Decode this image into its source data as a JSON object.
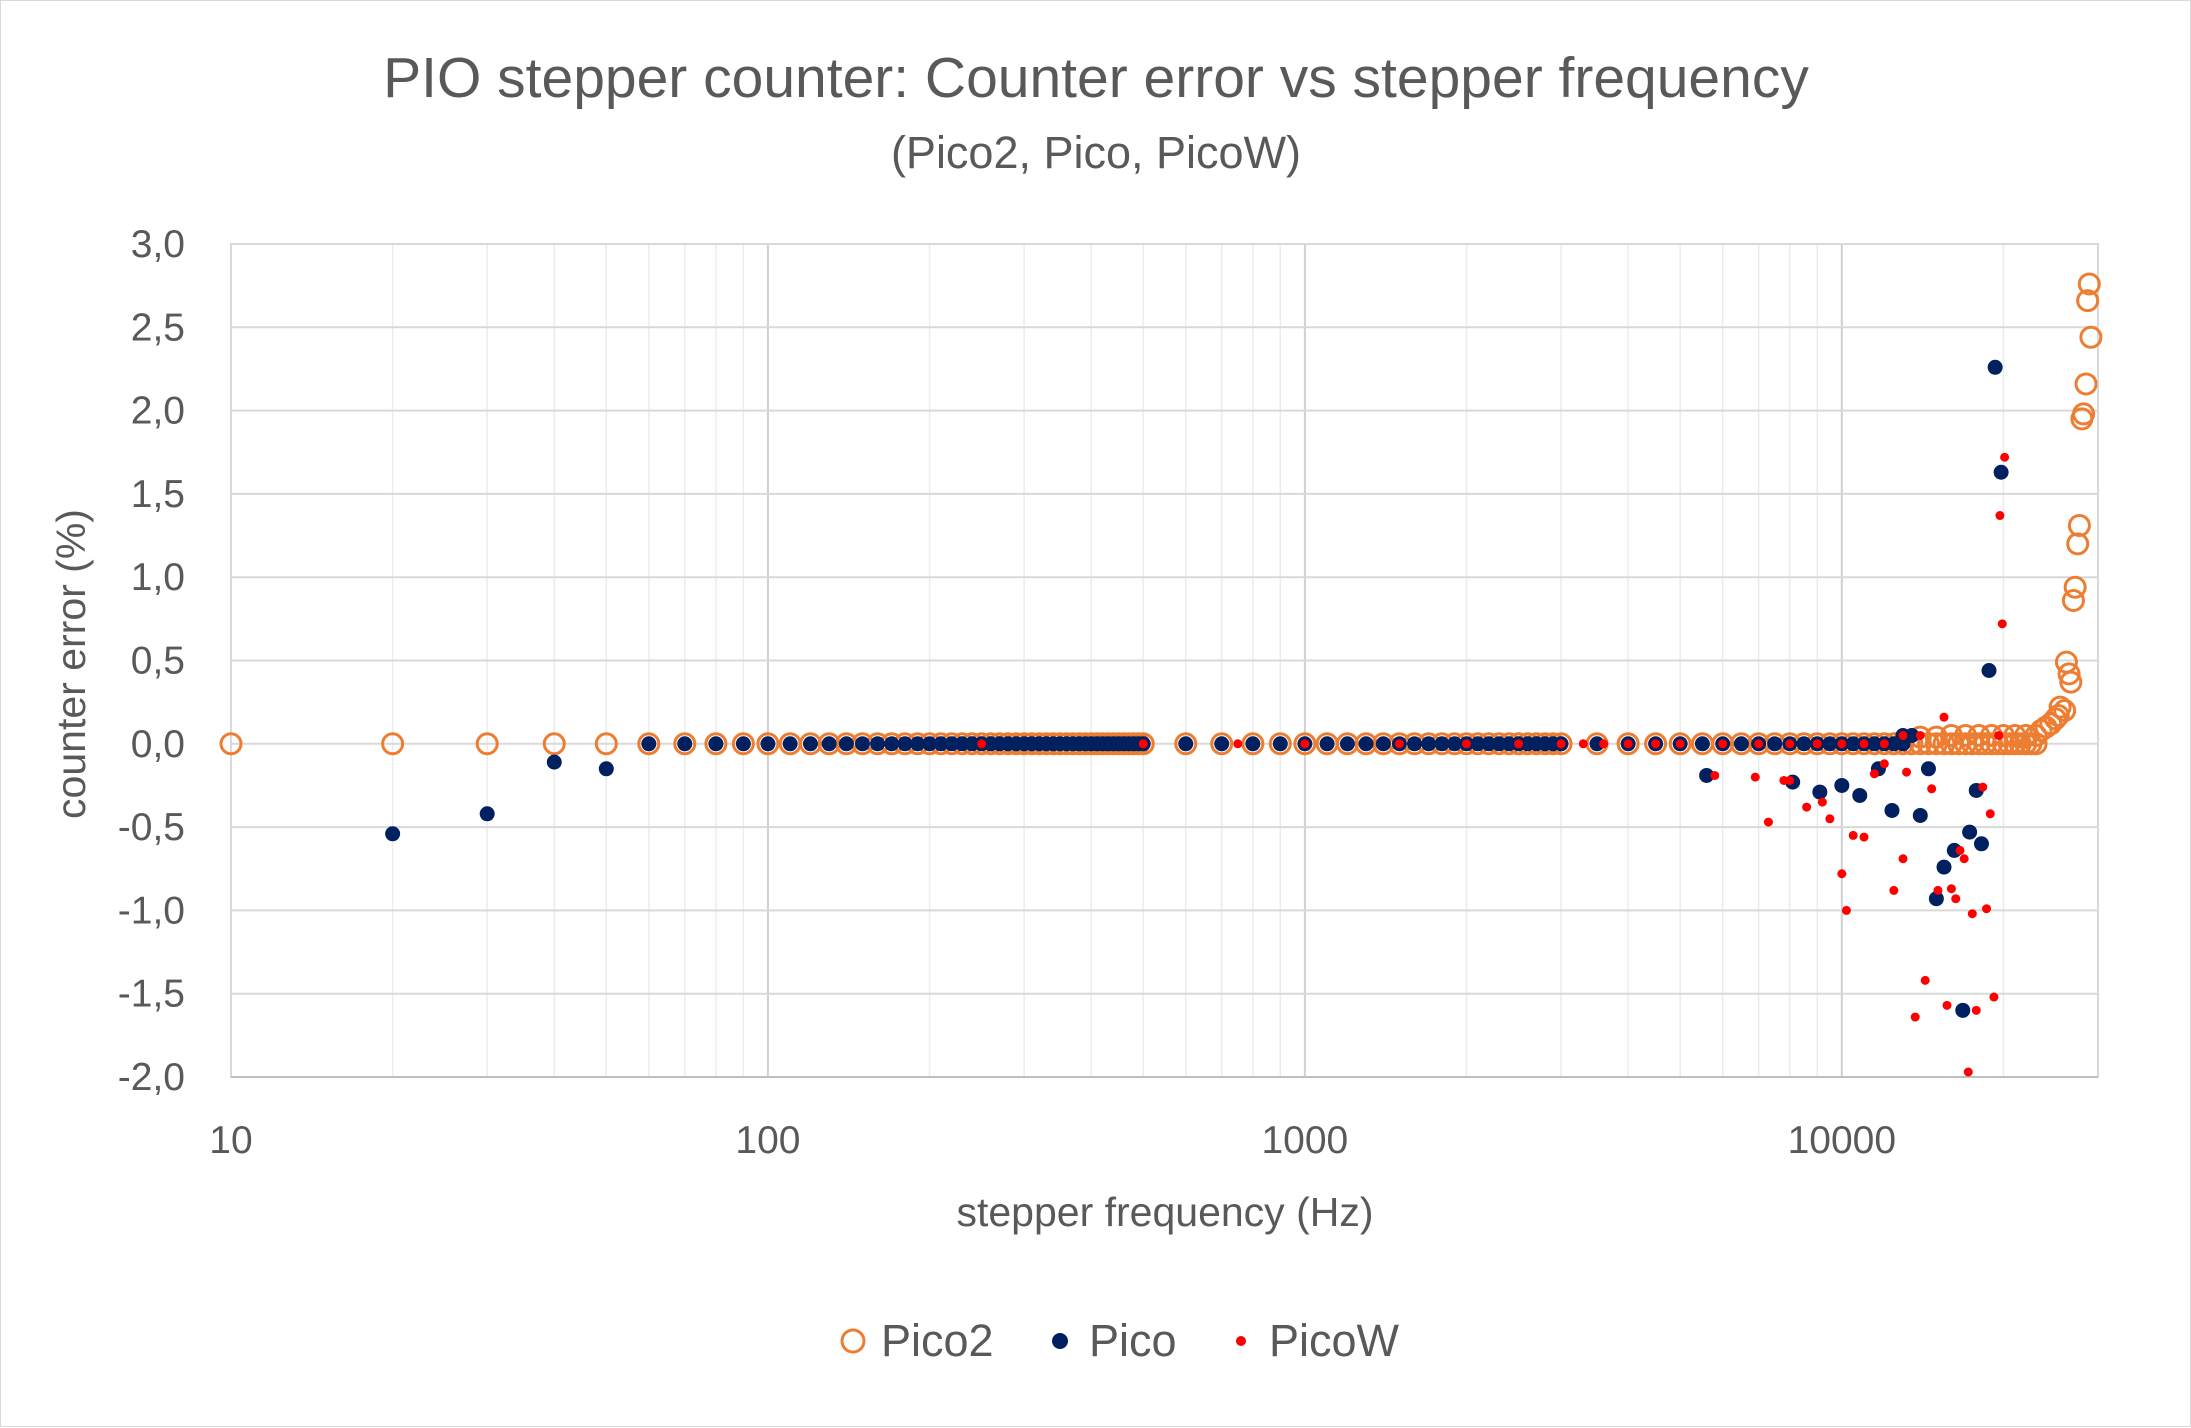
{
  "chart_data": {
    "type": "scatter",
    "title": "PIO stepper counter: Counter error vs stepper frequency",
    "subtitle": "(Pico2, Pico, PicoW)",
    "xlabel": "stepper frequency (Hz)",
    "ylabel": "counter error (%)",
    "xscale": "log",
    "xlim": [
      10,
      30000
    ],
    "ylim": [
      -2.0,
      3.0
    ],
    "x_ticks": [
      10,
      100,
      1000,
      10000
    ],
    "x_tick_labels": [
      "10",
      "100",
      "1000",
      "10000"
    ],
    "y_ticks": [
      3.0,
      2.5,
      2.0,
      1.5,
      1.0,
      0.5,
      0.0,
      -0.5,
      -1.0,
      -1.5,
      -2.0
    ],
    "y_tick_labels": [
      "3,0",
      "2,5",
      "2,0",
      "1,5",
      "1,0",
      "0,5",
      "0,0",
      "-0,5",
      "-1,0",
      "-1,5",
      "-2,0"
    ],
    "grid": true,
    "legend_position": "bottom",
    "series": [
      {
        "name": "Pico2",
        "color": "#ED7D31",
        "marker": "open-circle",
        "points": [
          [
            10,
            0
          ],
          [
            20,
            0
          ],
          [
            30,
            0
          ],
          [
            40,
            0
          ],
          [
            50,
            0
          ],
          [
            60,
            0
          ],
          [
            70,
            0
          ],
          [
            80,
            0
          ],
          [
            90,
            0
          ],
          [
            100,
            0
          ],
          [
            110,
            0
          ],
          [
            120,
            0
          ],
          [
            130,
            0
          ],
          [
            140,
            0
          ],
          [
            150,
            0
          ],
          [
            160,
            0
          ],
          [
            170,
            0
          ],
          [
            180,
            0
          ],
          [
            190,
            0
          ],
          [
            200,
            0
          ],
          [
            210,
            0
          ],
          [
            220,
            0
          ],
          [
            230,
            0
          ],
          [
            240,
            0
          ],
          [
            250,
            0
          ],
          [
            260,
            0
          ],
          [
            270,
            0
          ],
          [
            280,
            0
          ],
          [
            290,
            0
          ],
          [
            300,
            0
          ],
          [
            310,
            0
          ],
          [
            320,
            0
          ],
          [
            330,
            0
          ],
          [
            340,
            0
          ],
          [
            350,
            0
          ],
          [
            360,
            0
          ],
          [
            370,
            0
          ],
          [
            380,
            0
          ],
          [
            390,
            0
          ],
          [
            400,
            0
          ],
          [
            410,
            0
          ],
          [
            420,
            0
          ],
          [
            430,
            0
          ],
          [
            440,
            0
          ],
          [
            450,
            0
          ],
          [
            460,
            0
          ],
          [
            470,
            0
          ],
          [
            480,
            0
          ],
          [
            490,
            0
          ],
          [
            500,
            0
          ],
          [
            600,
            0
          ],
          [
            700,
            0
          ],
          [
            800,
            0
          ],
          [
            900,
            0
          ],
          [
            1000,
            0
          ],
          [
            1100,
            0
          ],
          [
            1200,
            0
          ],
          [
            1300,
            0
          ],
          [
            1400,
            0
          ],
          [
            1500,
            0
          ],
          [
            1600,
            0
          ],
          [
            1700,
            0
          ],
          [
            1800,
            0
          ],
          [
            1900,
            0
          ],
          [
            2000,
            0
          ],
          [
            2100,
            0
          ],
          [
            2200,
            0
          ],
          [
            2300,
            0
          ],
          [
            2400,
            0
          ],
          [
            2500,
            0
          ],
          [
            2600,
            0
          ],
          [
            2700,
            0
          ],
          [
            2800,
            0
          ],
          [
            2900,
            0
          ],
          [
            3000,
            0
          ],
          [
            3500,
            0
          ],
          [
            4000,
            0
          ],
          [
            4500,
            0
          ],
          [
            5000,
            0
          ],
          [
            5500,
            0
          ],
          [
            6000,
            0
          ],
          [
            6500,
            0
          ],
          [
            7000,
            0
          ],
          [
            7500,
            0
          ],
          [
            8000,
            0
          ],
          [
            8500,
            0
          ],
          [
            9000,
            0
          ],
          [
            9500,
            0
          ],
          [
            10000,
            0
          ],
          [
            10500,
            0
          ],
          [
            11000,
            0
          ],
          [
            11500,
            0
          ],
          [
            12000,
            0
          ],
          [
            12500,
            0
          ],
          [
            13000,
            0
          ],
          [
            13500,
            0
          ],
          [
            14000,
            0
          ],
          [
            14500,
            0
          ],
          [
            15000,
            0
          ],
          [
            15500,
            0
          ],
          [
            16000,
            0
          ],
          [
            16500,
            0
          ],
          [
            17000,
            0
          ],
          [
            17500,
            0
          ],
          [
            18000,
            0
          ],
          [
            18500,
            0
          ],
          [
            19000,
            0
          ],
          [
            19500,
            0
          ],
          [
            20000,
            0
          ],
          [
            20500,
            0
          ],
          [
            21000,
            0
          ],
          [
            21500,
            0
          ],
          [
            22000,
            0
          ],
          [
            22500,
            0
          ],
          [
            23000,
            0
          ],
          [
            14000,
            0.04
          ],
          [
            15000,
            0.04
          ],
          [
            16000,
            0.05
          ],
          [
            17000,
            0.05
          ],
          [
            18000,
            0.05
          ],
          [
            19000,
            0.05
          ],
          [
            20000,
            0.05
          ],
          [
            21000,
            0.05
          ],
          [
            22000,
            0.05
          ],
          [
            23000,
            0.05
          ],
          [
            23500,
            0.08
          ],
          [
            24000,
            0.1
          ],
          [
            24500,
            0.12
          ],
          [
            25000,
            0.15
          ],
          [
            25300,
            0.17
          ],
          [
            25500,
            0.22
          ],
          [
            26000,
            0.2
          ],
          [
            26200,
            0.49
          ],
          [
            26500,
            0.42
          ],
          [
            26700,
            0.37
          ],
          [
            27000,
            0.86
          ],
          [
            27200,
            0.94
          ],
          [
            27500,
            1.2
          ],
          [
            27700,
            1.31
          ],
          [
            28000,
            1.95
          ],
          [
            28200,
            1.98
          ],
          [
            28500,
            2.16
          ],
          [
            28700,
            2.66
          ],
          [
            28900,
            2.76
          ],
          [
            29100,
            2.44
          ]
        ]
      },
      {
        "name": "Pico",
        "color": "#002060",
        "marker": "filled-circle",
        "points": [
          [
            20,
            -0.54
          ],
          [
            30,
            -0.42
          ],
          [
            40,
            -0.11
          ],
          [
            50,
            -0.15
          ],
          [
            60,
            0
          ],
          [
            70,
            0
          ],
          [
            80,
            0
          ],
          [
            90,
            0
          ],
          [
            100,
            0
          ],
          [
            110,
            0
          ],
          [
            120,
            0
          ],
          [
            130,
            0
          ],
          [
            140,
            0
          ],
          [
            150,
            0
          ],
          [
            160,
            0
          ],
          [
            170,
            0
          ],
          [
            180,
            0
          ],
          [
            190,
            0
          ],
          [
            200,
            0
          ],
          [
            210,
            0
          ],
          [
            220,
            0
          ],
          [
            230,
            0
          ],
          [
            240,
            0
          ],
          [
            250,
            0
          ],
          [
            260,
            0
          ],
          [
            270,
            0
          ],
          [
            280,
            0
          ],
          [
            290,
            0
          ],
          [
            300,
            0
          ],
          [
            310,
            0
          ],
          [
            320,
            0
          ],
          [
            330,
            0
          ],
          [
            340,
            0
          ],
          [
            350,
            0
          ],
          [
            360,
            0
          ],
          [
            370,
            0
          ],
          [
            380,
            0
          ],
          [
            390,
            0
          ],
          [
            400,
            0
          ],
          [
            410,
            0
          ],
          [
            420,
            0
          ],
          [
            430,
            0
          ],
          [
            440,
            0
          ],
          [
            450,
            0
          ],
          [
            460,
            0
          ],
          [
            470,
            0
          ],
          [
            480,
            0
          ],
          [
            490,
            0
          ],
          [
            500,
            0
          ],
          [
            600,
            0
          ],
          [
            700,
            0
          ],
          [
            800,
            0
          ],
          [
            900,
            0
          ],
          [
            1000,
            0
          ],
          [
            1100,
            0
          ],
          [
            1200,
            0
          ],
          [
            1300,
            0
          ],
          [
            1400,
            0
          ],
          [
            1500,
            0
          ],
          [
            1600,
            0
          ],
          [
            1700,
            0
          ],
          [
            1800,
            0
          ],
          [
            1900,
            0
          ],
          [
            2000,
            0
          ],
          [
            2100,
            0
          ],
          [
            2200,
            0
          ],
          [
            2300,
            0
          ],
          [
            2400,
            0
          ],
          [
            2500,
            0
          ],
          [
            2600,
            0
          ],
          [
            2700,
            0
          ],
          [
            2800,
            0
          ],
          [
            2900,
            0
          ],
          [
            3000,
            0
          ],
          [
            3500,
            0
          ],
          [
            4000,
            0
          ],
          [
            4500,
            0
          ],
          [
            5000,
            0
          ],
          [
            5500,
            0
          ],
          [
            6000,
            0
          ],
          [
            6500,
            0
          ],
          [
            7000,
            0
          ],
          [
            7500,
            0
          ],
          [
            8000,
            0
          ],
          [
            8500,
            0
          ],
          [
            9000,
            0
          ],
          [
            9500,
            0
          ],
          [
            10000,
            0
          ],
          [
            10500,
            0
          ],
          [
            11000,
            0
          ],
          [
            11500,
            0
          ],
          [
            12000,
            0
          ],
          [
            12500,
            0
          ],
          [
            13000,
            0
          ],
          [
            5600,
            -0.19
          ],
          [
            8100,
            -0.23
          ],
          [
            9100,
            -0.29
          ],
          [
            10000,
            -0.25
          ],
          [
            10800,
            -0.31
          ],
          [
            11700,
            -0.15
          ],
          [
            12400,
            -0.4
          ],
          [
            13000,
            0.05
          ],
          [
            13500,
            0.05
          ],
          [
            14000,
            -0.43
          ],
          [
            14500,
            -0.15
          ],
          [
            15000,
            -0.93
          ],
          [
            15500,
            -0.74
          ],
          [
            16200,
            -0.64
          ],
          [
            16800,
            -1.6
          ],
          [
            17300,
            -0.53
          ],
          [
            17800,
            -0.28
          ],
          [
            18200,
            -0.6
          ],
          [
            18800,
            0.44
          ],
          [
            19300,
            2.26
          ],
          [
            19800,
            1.63
          ]
        ]
      },
      {
        "name": "PicoW",
        "color": "#FF0000",
        "marker": "small-filled-circle",
        "points": [
          [
            250,
            0
          ],
          [
            500,
            0
          ],
          [
            750,
            0
          ],
          [
            1000,
            0
          ],
          [
            1500,
            0
          ],
          [
            2000,
            0
          ],
          [
            2500,
            0
          ],
          [
            3000,
            0
          ],
          [
            3300,
            0
          ],
          [
            3600,
            0
          ],
          [
            4000,
            0
          ],
          [
            4500,
            0
          ],
          [
            5000,
            0
          ],
          [
            6000,
            0
          ],
          [
            7000,
            0
          ],
          [
            8000,
            0
          ],
          [
            9000,
            0
          ],
          [
            10000,
            0
          ],
          [
            11000,
            0
          ],
          [
            12000,
            0
          ],
          [
            13000,
            0.05
          ],
          [
            14000,
            0.05
          ],
          [
            5800,
            -0.19
          ],
          [
            6900,
            -0.2
          ],
          [
            7300,
            -0.47
          ],
          [
            7800,
            -0.22
          ],
          [
            8000,
            -0.22
          ],
          [
            8600,
            -0.38
          ],
          [
            9200,
            -0.35
          ],
          [
            9500,
            -0.45
          ],
          [
            10000,
            -0.78
          ],
          [
            10200,
            -1.0
          ],
          [
            10500,
            -0.55
          ],
          [
            11000,
            -0.56
          ],
          [
            11500,
            -0.18
          ],
          [
            12000,
            -0.12
          ],
          [
            12500,
            -0.88
          ],
          [
            13000,
            -0.69
          ],
          [
            13200,
            -0.17
          ],
          [
            13700,
            -1.64
          ],
          [
            14300,
            -1.42
          ],
          [
            14700,
            -0.27
          ],
          [
            15100,
            -0.88
          ],
          [
            15500,
            0.16
          ],
          [
            15700,
            -1.57
          ],
          [
            16000,
            -0.87
          ],
          [
            16300,
            -0.93
          ],
          [
            16600,
            -0.64
          ],
          [
            16900,
            -0.69
          ],
          [
            17200,
            -1.97
          ],
          [
            17500,
            -1.02
          ],
          [
            17800,
            -1.6
          ],
          [
            18300,
            -0.26
          ],
          [
            18600,
            -0.99
          ],
          [
            18900,
            -0.42
          ],
          [
            19200,
            -1.52
          ],
          [
            19600,
            0.05
          ],
          [
            19900,
            0.72
          ],
          [
            19700,
            1.37
          ],
          [
            20100,
            1.72
          ]
        ]
      }
    ]
  }
}
